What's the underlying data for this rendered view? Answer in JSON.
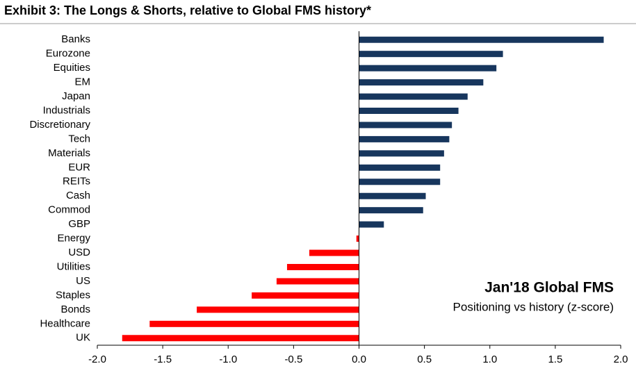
{
  "chart_data": {
    "type": "hbar",
    "title": "Exhibit 3: The Longs & Shorts, relative to Global FMS history*",
    "annotation_title": "Jan'18 Global FMS",
    "annotation_subtitle": "Positioning vs history (z-score)",
    "categories": [
      "Banks",
      "Eurozone",
      "Equities",
      "EM",
      "Japan",
      "Industrials",
      "Discretionary",
      "Tech",
      "Materials",
      "EUR",
      "REITs",
      "Cash",
      "Commod",
      "GBP",
      "Energy",
      "USD",
      "Utilities",
      "US",
      "Staples",
      "Bonds",
      "Healthcare",
      "UK"
    ],
    "values": [
      1.87,
      1.1,
      1.05,
      0.95,
      0.83,
      0.76,
      0.71,
      0.69,
      0.65,
      0.62,
      0.62,
      0.51,
      0.49,
      0.19,
      -0.02,
      -0.38,
      -0.55,
      -0.63,
      -0.82,
      -1.24,
      -1.6,
      -1.81
    ],
    "positive_color": "#17365d",
    "negative_color": "#ff0000",
    "xlim": [
      -2.0,
      2.0
    ],
    "xticks": [
      {
        "value": -2.0,
        "label": "-2.0"
      },
      -1.5,
      {
        "value": -1.0,
        "label": "-1.0"
      },
      -0.5,
      {
        "value": 0.0,
        "label": "0.0"
      },
      0.5,
      {
        "value": 1.0,
        "label": "1.0"
      },
      1.5,
      {
        "value": 2.0,
        "label": "2.0"
      }
    ],
    "grid": false
  }
}
